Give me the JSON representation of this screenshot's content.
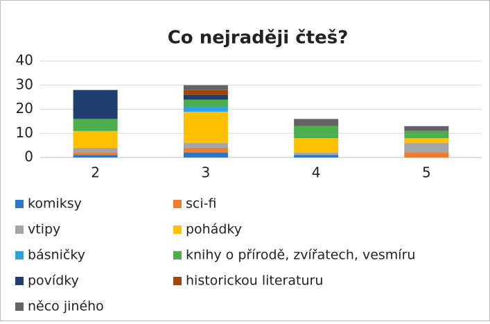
{
  "chart_data": {
    "type": "bar",
    "stacked": true,
    "title": "Co nejraději čteš?",
    "categories": [
      "2",
      "3",
      "4",
      "5"
    ],
    "series": [
      {
        "name": "komiksy",
        "color": "#2e75c6",
        "values": [
          1,
          2,
          1,
          0
        ]
      },
      {
        "name": "sci-fi",
        "color": "#ed7d31",
        "values": [
          1,
          2,
          0,
          2
        ]
      },
      {
        "name": "vtipy",
        "color": "#a5a5a5",
        "values": [
          2,
          2,
          1,
          4
        ]
      },
      {
        "name": "pohádky",
        "color": "#ffc000",
        "values": [
          7,
          13,
          6,
          2
        ]
      },
      {
        "name": "básničky",
        "color": "#2ea3e0",
        "values": [
          0,
          2,
          0,
          0
        ]
      },
      {
        "name": "knihy o přírodě, zvířatech, vesmíru",
        "color": "#4cae4c",
        "values": [
          5,
          3,
          5,
          3
        ]
      },
      {
        "name": "povídky",
        "color": "#1f3f6e",
        "values": [
          12,
          2,
          0,
          0
        ]
      },
      {
        "name": "historickou literaturu",
        "color": "#9e480e",
        "values": [
          0,
          2,
          0,
          0
        ]
      },
      {
        "name": "něco jiného",
        "color": "#636363",
        "values": [
          0,
          2,
          3,
          2
        ]
      }
    ],
    "ylim": [
      0,
      40
    ],
    "yticks": [
      0,
      10,
      20,
      30,
      40
    ],
    "grid": true
  }
}
